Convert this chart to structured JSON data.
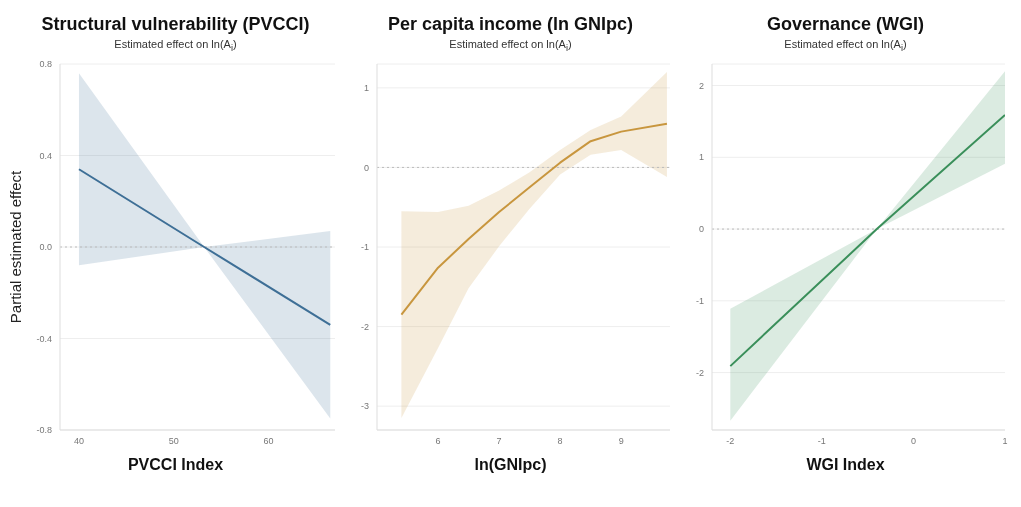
{
  "chart_data": [
    {
      "type": "line",
      "title": "Structural vulnerability (PVCCI)",
      "subtitle": "Estimated effect on ln(A$_{i}$)",
      "xlabel": "PVCCI Index",
      "ylabel": "Partial estimated effect",
      "x": [
        40,
        53.2,
        66.5
      ],
      "series": [
        {
          "color": "#3e6f96",
          "values": [
            0.34,
            0,
            -0.34
          ],
          "lower": [
            -0.08,
            0,
            -0.75
          ],
          "upper": [
            0.76,
            0,
            0.07
          ]
        }
      ],
      "xlim": [
        38,
        67
      ],
      "xticks": [
        40,
        50,
        60
      ],
      "ylim": [
        -0.8,
        0.8
      ],
      "yticks": [
        {
          "value": -0.8,
          "label": "-0.8"
        },
        {
          "value": -0.4,
          "label": "-0.4"
        },
        {
          "value": 0,
          "label": "0.0"
        },
        {
          "value": 0.4,
          "label": "0.4"
        },
        {
          "value": 0.8,
          "label": "0.8"
        }
      ],
      "grid": "y",
      "ref_lines": [
        {
          "axis": "y",
          "value": 0,
          "line_style": "dotted",
          "color": "#bbbbbb"
        }
      ]
    },
    {
      "type": "line",
      "title": "Per capita income (ln GNIpc)",
      "subtitle": "Estimated effect on ln(A$_{i}$)",
      "xlabel": "ln(GNIpc)",
      "x": [
        5.4,
        6,
        6.5,
        7,
        7.5,
        8,
        8.5,
        9,
        9.75
      ],
      "series": [
        {
          "color": "#c8963e",
          "values": [
            -1.85,
            -1.26,
            -0.9,
            -0.56,
            -0.25,
            0.06,
            0.33,
            0.45,
            0.55
          ],
          "lower": [
            -3.15,
            -2.27,
            -1.52,
            -0.99,
            -0.52,
            -0.09,
            0.16,
            0.22,
            -0.12
          ],
          "upper": [
            -0.55,
            -0.56,
            -0.48,
            -0.29,
            -0.06,
            0.22,
            0.47,
            0.64,
            1.2
          ]
        }
      ],
      "xlim": [
        5,
        9.8
      ],
      "xticks": [
        6,
        7,
        8,
        9
      ],
      "ylim": [
        -3.3,
        1.3
      ],
      "yticks": [
        -3,
        -2,
        -1,
        0,
        1
      ],
      "grid": "y",
      "ref_lines": [
        {
          "axis": "y",
          "value": 0,
          "line_style": "dotted",
          "color": "#bbbbbb"
        }
      ]
    },
    {
      "type": "line",
      "title": "Governance (WGI)",
      "subtitle": "Estimated effect on ln(A$_{i}$)",
      "xlabel": "WGI Index",
      "x": [
        -2,
        -0.4,
        1
      ],
      "series": [
        {
          "color": "#3a8f5a",
          "values": [
            -1.91,
            0,
            1.59
          ],
          "lower": [
            -2.67,
            0,
            0.91
          ],
          "upper": [
            -1.11,
            0,
            2.2
          ]
        }
      ],
      "xlim": [
        -2.2,
        1
      ],
      "xticks": [
        -2,
        -1,
        0,
        1
      ],
      "ylim": [
        -2.8,
        2.3
      ],
      "yticks": [
        -2,
        -1,
        0,
        1,
        2
      ],
      "grid": "y",
      "ref_lines": [
        {
          "axis": "y",
          "value": 0,
          "line_style": "dotted",
          "color": "#bbbbbb"
        }
      ]
    }
  ]
}
